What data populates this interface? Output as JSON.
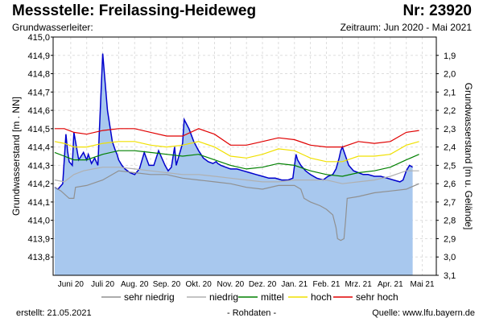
{
  "header": {
    "title": "Messstelle: Freilassing-Heideweg",
    "number": "Nr: 23920",
    "aquifer_label": "Grundwasserleiter:",
    "period": "Zeitraum: Jun 2020 - Mai 2021"
  },
  "footer": {
    "created": "erstellt:  21.05.2021",
    "note": "- Rohdaten -",
    "source": "Quelle:  www.lfu.bayern.de"
  },
  "chart_data": {
    "type": "area",
    "ylabel": "Grundwasserstand [m . NN]",
    "y2label": "Grundwasserstand [m u. Gelände]",
    "ylim": [
      413.7,
      415.0
    ],
    "y2lim": [
      1.8,
      3.1
    ],
    "yticks": [
      "413,8",
      "413,9",
      "414,0",
      "414,1",
      "414,2",
      "414,3",
      "414,4",
      "414,5",
      "414,6",
      "414,7",
      "414,8",
      "414,9",
      "415,0"
    ],
    "y2ticks": [
      "1,9",
      "2,0",
      "2,1",
      "2,2",
      "2,3",
      "2,4",
      "2,5",
      "2,6",
      "2,7",
      "2,8",
      "2,9",
      "3,0",
      "3,1"
    ],
    "categories": [
      "Juni 20",
      "Juli 20",
      "Aug. 20",
      "Sep. 20",
      "Okt. 20",
      "Nov. 20",
      "Dez. 20",
      "Jan. 21",
      "Feb. 21",
      "Mrz. 21",
      "Apr. 21",
      "Mai 21"
    ],
    "grid": true,
    "legend_position": "bottom",
    "colors": {
      "measured_fill": "#a8c8ee",
      "measured_line": "#0000cc",
      "sehr_niedrig": "#909090",
      "niedrig": "#b0b0b0",
      "mittel": "#008000",
      "hoch": "#f0e000",
      "sehr_hoch": "#e00000"
    },
    "series": [
      {
        "name": "Grundwasserstand",
        "x": [
          0,
          0.1,
          0.25,
          0.35,
          0.4,
          0.45,
          0.55,
          0.6,
          0.75,
          0.9,
          1.0,
          1.05,
          1.15,
          1.25,
          1.35,
          1.5,
          1.65,
          1.8,
          1.9,
          1.95,
          2.0,
          2.1,
          2.2,
          2.35,
          2.5,
          2.65,
          2.8,
          2.95,
          3.1,
          3.25,
          3.35,
          3.45,
          3.55,
          3.65,
          3.75,
          3.8,
          3.9,
          4.0,
          4.05,
          4.2,
          4.35,
          4.5,
          4.65,
          4.8,
          4.95,
          5.05,
          5.1,
          5.2,
          5.35,
          5.5,
          5.7,
          5.9,
          6.1,
          6.3,
          6.5,
          6.7,
          6.9,
          7.1,
          7.3,
          7.45,
          7.55,
          7.6,
          7.7,
          7.85,
          8.0,
          8.2,
          8.4,
          8.55,
          8.7,
          8.8,
          8.9,
          8.95,
          9.0,
          9.1,
          9.2,
          9.35,
          9.5,
          9.65,
          9.8,
          10.0,
          10.2,
          10.4,
          10.6,
          10.8,
          10.9,
          11.0,
          11.1,
          11.2
        ],
        "values": [
          414.18,
          414.17,
          414.2,
          414.47,
          414.38,
          414.32,
          414.3,
          414.48,
          414.33,
          414.37,
          414.33,
          414.36,
          414.31,
          414.34,
          414.3,
          414.91,
          414.6,
          414.43,
          414.38,
          414.36,
          414.33,
          414.3,
          414.28,
          414.26,
          414.25,
          414.28,
          414.37,
          414.3,
          414.3,
          414.38,
          414.34,
          414.3,
          414.27,
          414.29,
          414.4,
          414.3,
          414.36,
          414.42,
          414.55,
          414.5,
          414.43,
          414.38,
          414.34,
          414.32,
          414.31,
          414.32,
          414.31,
          414.3,
          414.29,
          414.28,
          414.28,
          414.27,
          414.26,
          414.25,
          414.24,
          414.23,
          414.23,
          414.22,
          414.22,
          414.23,
          414.36,
          414.33,
          414.3,
          414.27,
          414.25,
          414.23,
          414.22,
          414.24,
          414.25,
          414.28,
          414.34,
          414.38,
          414.4,
          414.35,
          414.3,
          414.27,
          414.26,
          414.25,
          414.25,
          414.24,
          414.24,
          414.23,
          414.22,
          414.21,
          414.22,
          414.27,
          414.3,
          414.29
        ]
      },
      {
        "name": "sehr niedrig",
        "x": [
          0,
          0.2,
          0.45,
          0.6,
          0.65,
          1.0,
          1.5,
          2.0,
          2.5,
          3.0,
          3.5,
          4.0,
          4.5,
          5.0,
          5.5,
          6.0,
          6.5,
          7.0,
          7.5,
          7.7,
          7.8,
          8.0,
          8.3,
          8.5,
          8.7,
          8.8,
          8.85,
          8.95,
          9.05,
          9.1,
          9.15,
          9.5,
          10.0,
          10.5,
          11.0,
          11.4
        ],
        "values": [
          414.18,
          414.16,
          414.12,
          414.12,
          414.18,
          414.19,
          414.22,
          414.27,
          414.26,
          414.25,
          414.25,
          414.23,
          414.22,
          414.21,
          414.2,
          414.18,
          414.17,
          414.19,
          414.19,
          414.17,
          414.12,
          414.1,
          414.08,
          414.06,
          414.03,
          413.96,
          413.9,
          413.89,
          413.9,
          414.0,
          414.12,
          414.13,
          414.15,
          414.16,
          414.17,
          414.2
        ]
      },
      {
        "name": "niedrig",
        "x": [
          0,
          0.3,
          0.6,
          0.9,
          1.2,
          1.5,
          2.0,
          2.5,
          3.0,
          3.5,
          4.0,
          4.5,
          5.0,
          5.5,
          6.0,
          6.5,
          7.0,
          7.5,
          8.0,
          8.5,
          9.0,
          9.5,
          10.0,
          10.5,
          11.0,
          11.4
        ],
        "values": [
          414.22,
          414.21,
          414.25,
          414.27,
          414.28,
          414.29,
          414.29,
          414.28,
          414.27,
          414.26,
          414.25,
          414.25,
          414.24,
          414.23,
          414.22,
          414.21,
          414.21,
          414.22,
          414.22,
          414.22,
          414.2,
          414.21,
          414.22,
          414.24,
          414.27,
          414.27
        ]
      },
      {
        "name": "mittel",
        "x": [
          0,
          0.3,
          0.6,
          1.0,
          1.5,
          2.0,
          2.5,
          3.0,
          3.5,
          4.0,
          4.5,
          5.0,
          5.5,
          6.0,
          6.5,
          7.0,
          7.5,
          8.0,
          8.5,
          9.0,
          9.5,
          10.0,
          10.5,
          11.0,
          11.4
        ],
        "values": [
          414.37,
          414.35,
          414.33,
          414.33,
          414.36,
          414.38,
          414.38,
          414.37,
          414.36,
          414.35,
          414.36,
          414.33,
          414.3,
          414.28,
          414.29,
          414.31,
          414.3,
          414.27,
          414.25,
          414.24,
          414.26,
          414.27,
          414.29,
          414.33,
          414.36
        ]
      },
      {
        "name": "hoch",
        "x": [
          0,
          0.3,
          0.6,
          1.0,
          1.5,
          2.0,
          2.5,
          3.0,
          3.5,
          4.0,
          4.5,
          5.0,
          5.5,
          6.0,
          6.5,
          7.0,
          7.5,
          8.0,
          8.5,
          9.0,
          9.5,
          10.0,
          10.5,
          11.0,
          11.4
        ],
        "values": [
          414.43,
          414.42,
          414.4,
          414.4,
          414.42,
          414.43,
          414.43,
          414.41,
          414.4,
          414.41,
          414.43,
          414.4,
          414.35,
          414.34,
          414.36,
          414.39,
          414.38,
          414.34,
          414.32,
          414.32,
          414.35,
          414.35,
          414.36,
          414.41,
          414.43
        ]
      },
      {
        "name": "sehr hoch",
        "x": [
          0,
          0.3,
          0.6,
          1.0,
          1.5,
          2.0,
          2.5,
          3.0,
          3.5,
          4.0,
          4.5,
          5.0,
          5.5,
          6.0,
          6.5,
          7.0,
          7.5,
          8.0,
          8.5,
          9.0,
          9.5,
          10.0,
          10.5,
          11.0,
          11.4
        ],
        "values": [
          414.5,
          414.5,
          414.48,
          414.47,
          414.49,
          414.5,
          414.5,
          414.48,
          414.46,
          414.46,
          414.5,
          414.47,
          414.41,
          414.41,
          414.43,
          414.45,
          414.44,
          414.41,
          414.4,
          414.4,
          414.43,
          414.42,
          414.43,
          414.48,
          414.49
        ]
      }
    ]
  }
}
